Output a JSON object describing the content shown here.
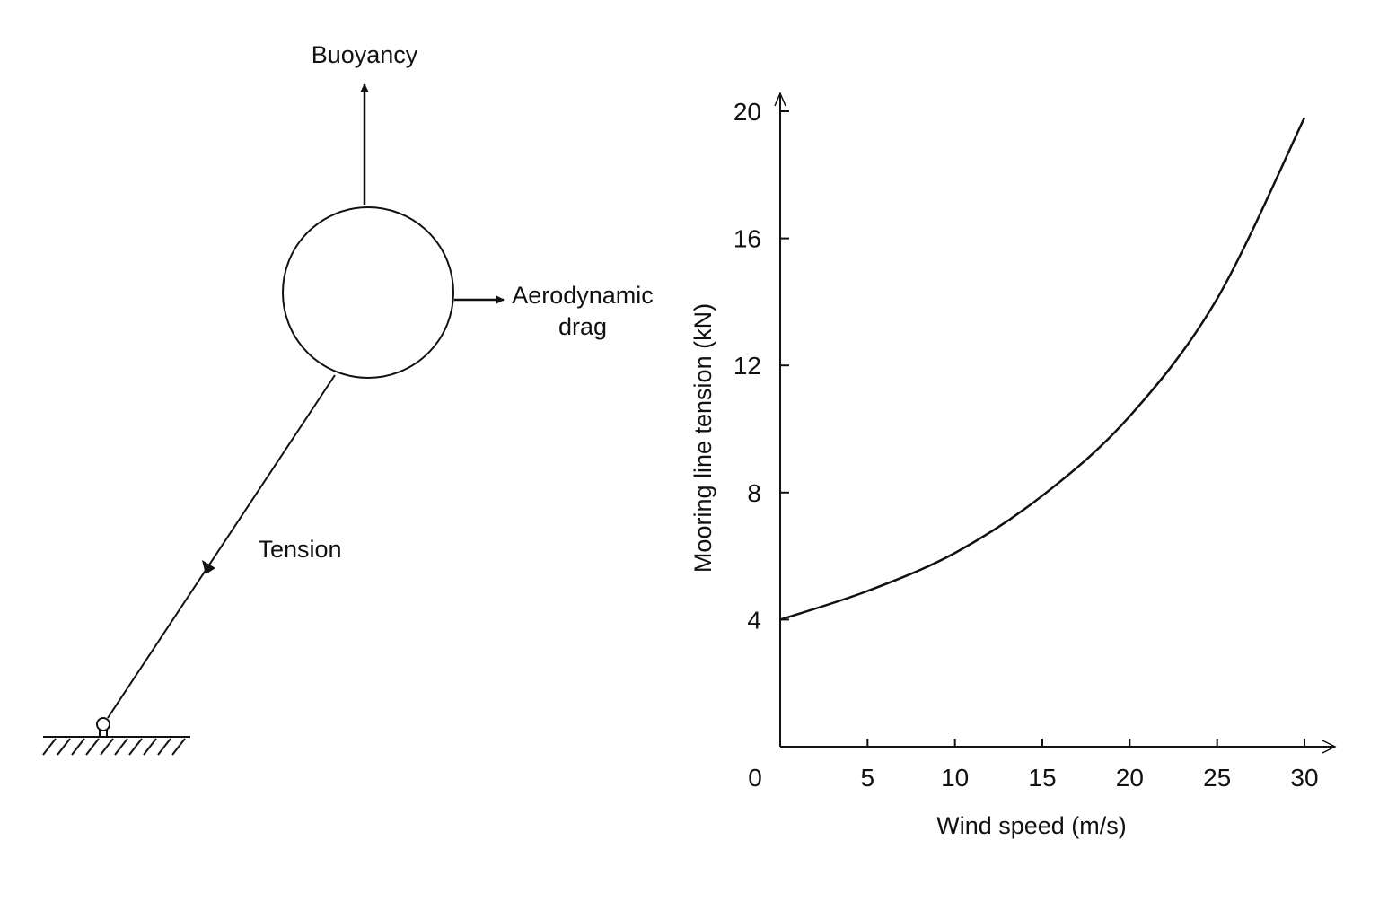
{
  "diagram": {
    "buoyancy_label": "Buoyancy",
    "drag_label_line1": "Aerodynamic",
    "drag_label_line2": "drag",
    "tension_label": "Tension",
    "line_color": "#111111"
  },
  "chart_data": {
    "type": "line",
    "title": "",
    "xlabel": "Wind speed (m/s)",
    "ylabel": "Mooring line tension (kN)",
    "xlim": [
      0,
      30
    ],
    "ylim": [
      0,
      20
    ],
    "x_ticks": [
      0,
      5,
      10,
      15,
      20,
      25,
      30
    ],
    "y_ticks": [
      4,
      8,
      12,
      16,
      20
    ],
    "grid": false,
    "series": [
      {
        "x": [
          0,
          5,
          10,
          15,
          20,
          25,
          30
        ],
        "y": [
          4.0,
          4.9,
          6.1,
          7.9,
          10.4,
          14.1,
          19.8
        ]
      }
    ]
  }
}
